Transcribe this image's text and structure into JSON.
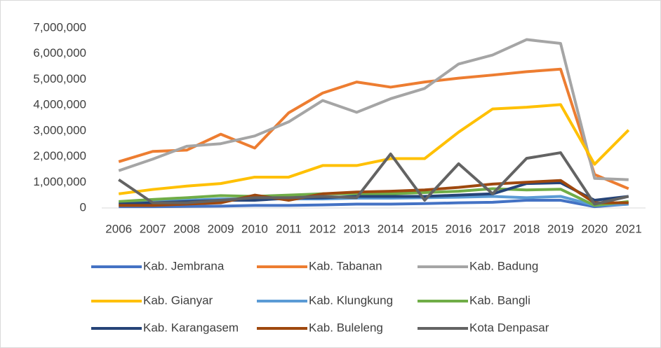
{
  "chart_data": {
    "type": "line",
    "categories": [
      "2006",
      "2007",
      "2008",
      "2009",
      "2010",
      "2011",
      "2012",
      "2013",
      "2014",
      "2015",
      "2016",
      "2017",
      "2018",
      "2019",
      "2020",
      "2021"
    ],
    "series": [
      {
        "name": "Kab. Jembrana",
        "color": "#4472c4",
        "values": [
          50000,
          50000,
          60000,
          70000,
          100000,
          100000,
          120000,
          150000,
          150000,
          170000,
          200000,
          220000,
          300000,
          300000,
          50000,
          150000
        ]
      },
      {
        "name": "Kab. Tabanan",
        "color": "#ed7d31",
        "values": [
          1800000,
          2200000,
          2250000,
          2870000,
          2330000,
          3700000,
          4470000,
          4900000,
          4700000,
          4900000,
          5050000,
          5170000,
          5300000,
          5400000,
          1300000,
          750000
        ]
      },
      {
        "name": "Kab. Badung",
        "color": "#a5a5a5",
        "values": [
          1450000,
          1900000,
          2400000,
          2500000,
          2800000,
          3350000,
          4180000,
          3720000,
          4250000,
          4650000,
          5600000,
          5950000,
          6550000,
          6400000,
          1150000,
          1100000
        ]
      },
      {
        "name": "Kab. Gianyar",
        "color": "#ffc000",
        "values": [
          550000,
          720000,
          850000,
          950000,
          1200000,
          1200000,
          1650000,
          1650000,
          1920000,
          1920000,
          2950000,
          3850000,
          3920000,
          4020000,
          1700000,
          3030000
        ]
      },
      {
        "name": "Kab. Klungkung",
        "color": "#5b9bd5",
        "values": [
          200000,
          250000,
          300000,
          350000,
          350000,
          350000,
          350000,
          380000,
          380000,
          400000,
          420000,
          450000,
          400000,
          450000,
          100000,
          150000
        ]
      },
      {
        "name": "Kab. Bangli",
        "color": "#70ad47",
        "values": [
          250000,
          330000,
          400000,
          480000,
          450000,
          500000,
          550000,
          550000,
          550000,
          600000,
          650000,
          750000,
          700000,
          730000,
          100000,
          250000
        ]
      },
      {
        "name": "Kab. Karangasem",
        "color": "#264478",
        "values": [
          150000,
          200000,
          250000,
          300000,
          300000,
          380000,
          400000,
          450000,
          450000,
          450000,
          500000,
          550000,
          950000,
          980000,
          300000,
          450000
        ]
      },
      {
        "name": "Kab. Buleleng",
        "color": "#9e480e",
        "values": [
          100000,
          100000,
          150000,
          200000,
          500000,
          300000,
          550000,
          620000,
          650000,
          700000,
          800000,
          930000,
          1000000,
          1070000,
          200000,
          200000
        ]
      },
      {
        "name": "Kota Denpasar",
        "color": "#636363",
        "values": [
          1100000,
          200000,
          200000,
          300000,
          400000,
          400000,
          450000,
          400000,
          2100000,
          300000,
          1720000,
          550000,
          1930000,
          2150000,
          150000,
          450000
        ]
      }
    ],
    "ylim": [
      0,
      7000000
    ],
    "yticks": [
      0,
      {
        "value": 1000000,
        "label": "1,000,000"
      },
      {
        "value": 2000000,
        "label": "2,000,000"
      },
      {
        "value": 3000000,
        "label": "3,000,000"
      },
      {
        "value": 4000000,
        "label": "4,000,000"
      },
      {
        "value": 5000000,
        "label": "5,000,000"
      },
      {
        "value": 6000000,
        "label": "6,000,000"
      },
      {
        "value": 7000000,
        "label": "7,000,000"
      }
    ],
    "grid": false,
    "legend": "bottom"
  }
}
